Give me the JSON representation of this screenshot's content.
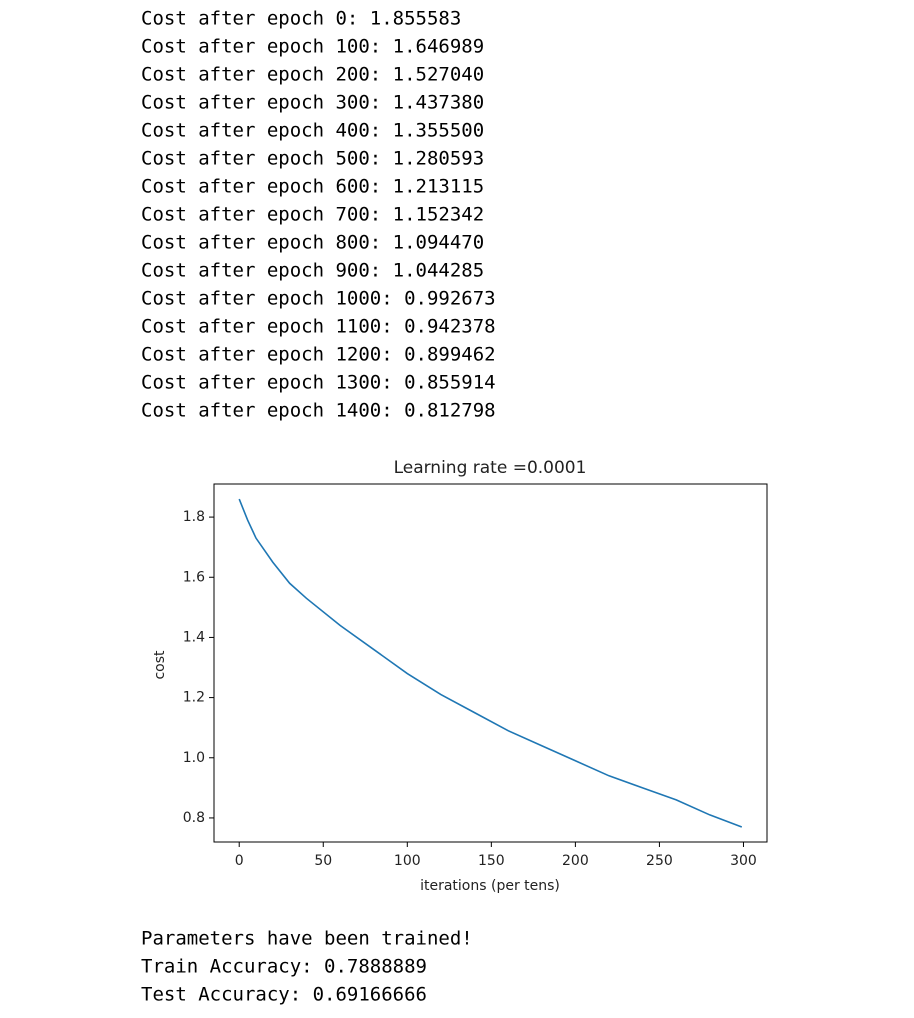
{
  "log": [
    "Cost after epoch 0: 1.855583",
    "Cost after epoch 100: 1.646989",
    "Cost after epoch 200: 1.527040",
    "Cost after epoch 300: 1.437380",
    "Cost after epoch 400: 1.355500",
    "Cost after epoch 500: 1.280593",
    "Cost after epoch 600: 1.213115",
    "Cost after epoch 700: 1.152342",
    "Cost after epoch 800: 1.094470",
    "Cost after epoch 900: 1.044285",
    "Cost after epoch 1000: 0.992673",
    "Cost after epoch 1100: 0.942378",
    "Cost after epoch 1200: 0.899462",
    "Cost after epoch 1300: 0.855914",
    "Cost after epoch 1400: 0.812798"
  ],
  "chart_data": {
    "type": "line",
    "title": "Learning rate =0.0001",
    "xlabel": "iterations (per tens)",
    "ylabel": "cost",
    "x": [
      0,
      5,
      10,
      20,
      30,
      40,
      60,
      80,
      100,
      120,
      140,
      160,
      180,
      200,
      220,
      240,
      260,
      280,
      299
    ],
    "values": [
      1.86,
      1.79,
      1.73,
      1.65,
      1.58,
      1.53,
      1.44,
      1.36,
      1.28,
      1.21,
      1.15,
      1.09,
      1.04,
      0.99,
      0.94,
      0.9,
      0.86,
      0.81,
      0.77
    ],
    "color": "#1f77b4",
    "xlim": [
      -15,
      314
    ],
    "xticks": [
      0,
      50,
      100,
      150,
      200,
      250,
      300
    ],
    "ylim": [
      0.72,
      1.91
    ],
    "yticks": [
      0.8,
      {
        "value": 1.0,
        "label": "1.0"
      },
      1.2,
      1.4,
      1.6,
      1.8
    ]
  },
  "results": [
    "Parameters have been trained!",
    "Train Accuracy: 0.7888889",
    "Test Accuracy: 0.69166666"
  ]
}
